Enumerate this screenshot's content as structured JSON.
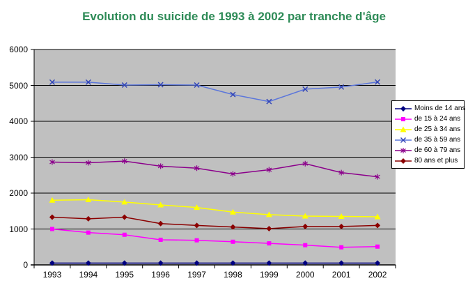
{
  "chart_data": {
    "type": "line",
    "title": "Evolution du suicide de 1993 à 2002 par tranche d'âge",
    "title_color": "#2E8B57",
    "categories": [
      "1993",
      "1994",
      "1995",
      "1996",
      "1997",
      "1998",
      "1999",
      "2000",
      "2001",
      "2002"
    ],
    "yticks": [
      "0",
      "1000",
      "2000",
      "3000",
      "4000",
      "5000",
      "6000"
    ],
    "ylim": [
      0,
      6000
    ],
    "grid": true,
    "plot_bg": "#C0C0C0",
    "grid_color": "#000000",
    "axis_color": "#000000",
    "legend_position": "right",
    "series": [
      {
        "name": "Moins de 14 ans",
        "color": "#000080",
        "marker": "diamond",
        "values": [
          50,
          50,
          50,
          50,
          50,
          50,
          50,
          50,
          50,
          50
        ]
      },
      {
        "name": "de 15 à 24 ans",
        "color": "#FF00FF",
        "marker": "square",
        "values": [
          1000,
          900,
          840,
          700,
          685,
          645,
          600,
          550,
          490,
          510
        ]
      },
      {
        "name": "de 25 à 34 ans",
        "color": "#FFFF00",
        "marker": "triangle",
        "values": [
          1800,
          1815,
          1750,
          1670,
          1600,
          1470,
          1400,
          1360,
          1350,
          1340
        ]
      },
      {
        "name": "de 35 à 59 ans",
        "color": "#5B76DB",
        "marker_color": "#2E41B5",
        "marker": "x",
        "values": [
          5090,
          5090,
          5010,
          5020,
          5010,
          4745,
          4550,
          4895,
          4955,
          5095
        ]
      },
      {
        "name": "de 60 à 79 ans",
        "color": "#8B008B",
        "marker": "asterisk",
        "values": [
          2865,
          2845,
          2890,
          2750,
          2695,
          2535,
          2650,
          2820,
          2570,
          2455
        ]
      },
      {
        "name": "80 ans et plus",
        "color": "#8B0000",
        "marker": "diamond",
        "values": [
          1330,
          1285,
          1330,
          1150,
          1100,
          1055,
          1010,
          1070,
          1070,
          1100
        ]
      }
    ]
  }
}
